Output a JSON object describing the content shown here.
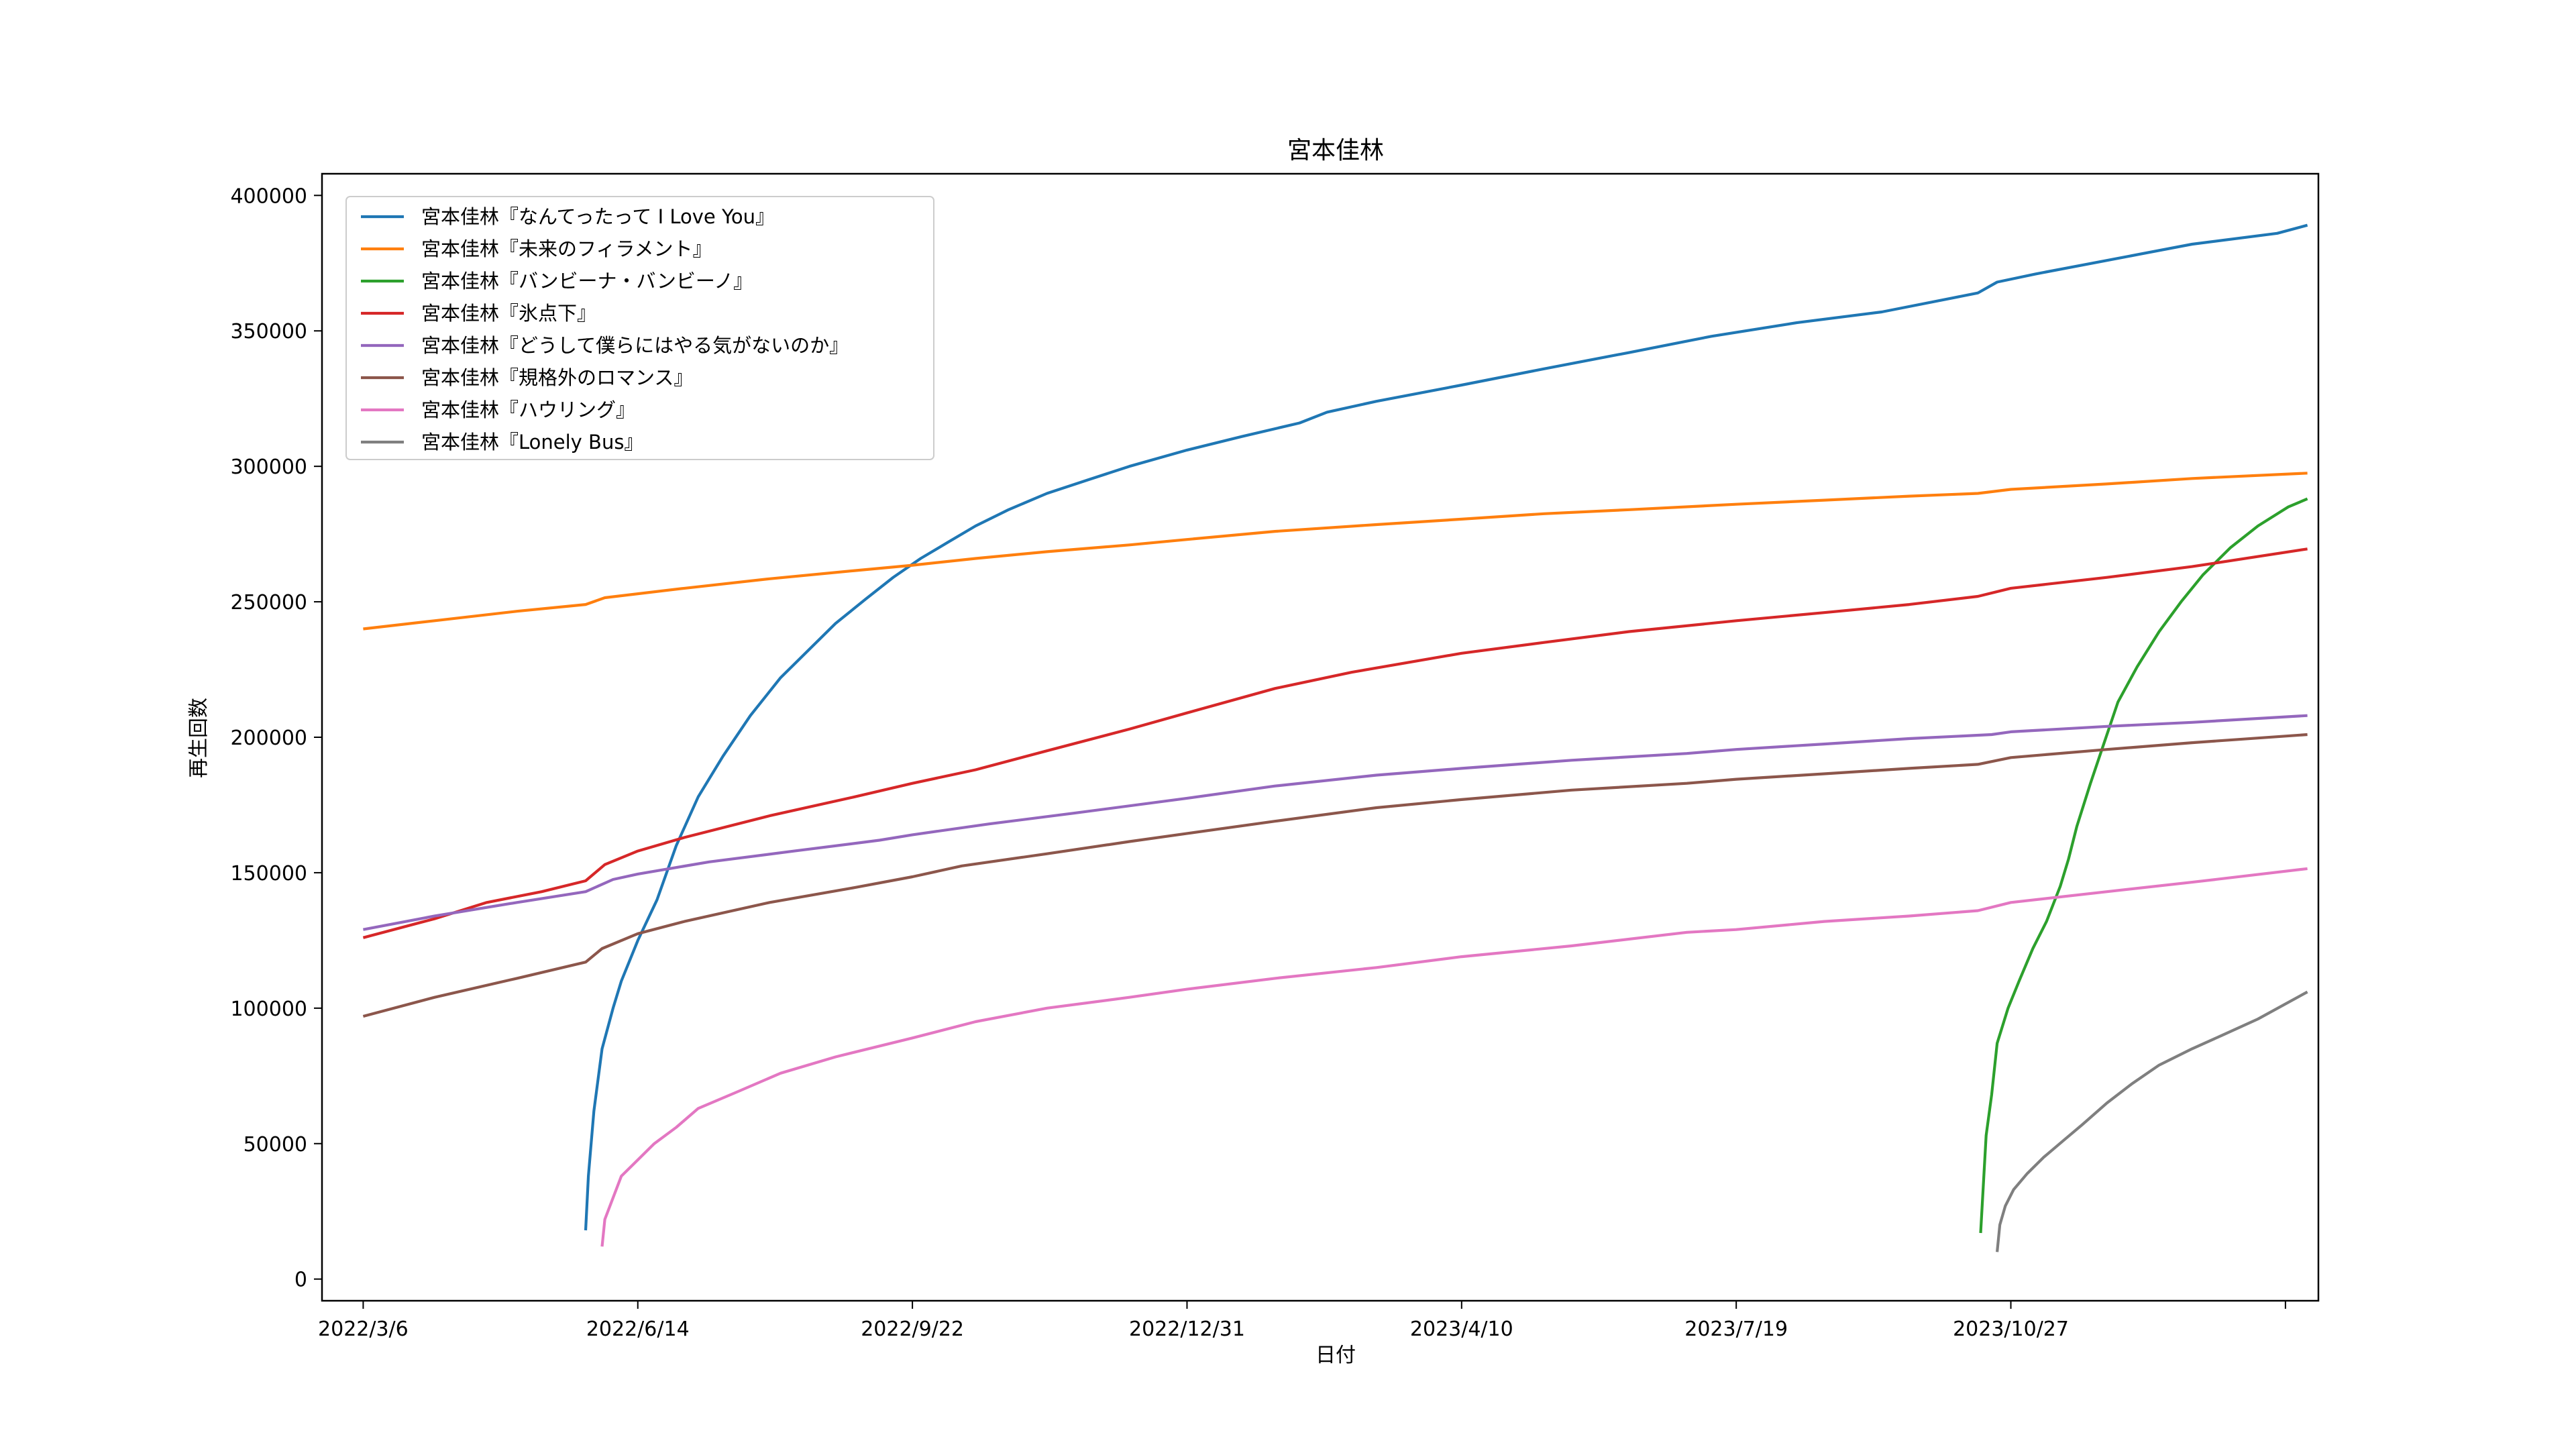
{
  "chart_data": {
    "type": "line",
    "title": "宮本佳林",
    "xlabel": "日付",
    "ylabel": "再生回数",
    "x_ticks": [
      "2022/3/6",
      "2022/6/14",
      "2022/9/22",
      "2022/12/31",
      "2023/4/10",
      "2023/7/19",
      "2023/10/27",
      ""
    ],
    "y_ticks": [
      "0",
      "50000",
      "100000",
      "150000",
      "200000",
      "250000",
      "300000",
      "350000",
      "400000"
    ],
    "xlim": [
      "2022-02-19",
      "2024-02-16"
    ],
    "ylim": [
      -8000,
      408000
    ],
    "grid": false,
    "legend_position": "top-left",
    "series": [
      {
        "name": "宮本佳林『なんてったって I Love You』",
        "color": "#1f77b4",
        "points": [
          [
            "2022-05-26",
            18000
          ],
          [
            "2022-05-27",
            38000
          ],
          [
            "2022-05-29",
            62000
          ],
          [
            "2022-06-01",
            85000
          ],
          [
            "2022-06-05",
            100000
          ],
          [
            "2022-06-08",
            110000
          ],
          [
            "2022-06-14",
            125000
          ],
          [
            "2022-06-21",
            140000
          ],
          [
            "2022-06-28",
            160000
          ],
          [
            "2022-07-06",
            178000
          ],
          [
            "2022-07-15",
            193000
          ],
          [
            "2022-07-25",
            208000
          ],
          [
            "2022-08-05",
            222000
          ],
          [
            "2022-08-15",
            232000
          ],
          [
            "2022-08-25",
            242000
          ],
          [
            "2022-09-05",
            251000
          ],
          [
            "2022-09-15",
            259000
          ],
          [
            "2022-09-25",
            266000
          ],
          [
            "2022-10-05",
            272000
          ],
          [
            "2022-10-15",
            278000
          ],
          [
            "2022-10-27",
            284000
          ],
          [
            "2022-11-10",
            290000
          ],
          [
            "2022-11-25",
            295000
          ],
          [
            "2022-12-10",
            300000
          ],
          [
            "2022-12-31",
            306000
          ],
          [
            "2023-01-20",
            311000
          ],
          [
            "2023-02-10",
            316000
          ],
          [
            "2023-02-20",
            320000
          ],
          [
            "2023-03-10",
            324000
          ],
          [
            "2023-04-10",
            330000
          ],
          [
            "2023-05-10",
            336000
          ],
          [
            "2023-06-10",
            342000
          ],
          [
            "2023-07-10",
            348000
          ],
          [
            "2023-08-10",
            353000
          ],
          [
            "2023-09-10",
            357000
          ],
          [
            "2023-10-05",
            362000
          ],
          [
            "2023-10-15",
            364000
          ],
          [
            "2023-10-22",
            368000
          ],
          [
            "2023-11-05",
            371000
          ],
          [
            "2023-12-01",
            376000
          ],
          [
            "2024-01-01",
            382000
          ],
          [
            "2024-02-01",
            386000
          ],
          [
            "2024-02-12",
            389000
          ]
        ]
      },
      {
        "name": "宮本佳林『未来のフィラメント』",
        "color": "#ff7f0e",
        "points": [
          [
            "2022-03-06",
            240000
          ],
          [
            "2022-04-01",
            243000
          ],
          [
            "2022-05-01",
            246500
          ],
          [
            "2022-05-26",
            249000
          ],
          [
            "2022-06-02",
            251500
          ],
          [
            "2022-07-01",
            255000
          ],
          [
            "2022-08-01",
            258500
          ],
          [
            "2022-09-01",
            261500
          ],
          [
            "2022-09-22",
            263500
          ],
          [
            "2022-10-15",
            266000
          ],
          [
            "2022-11-10",
            268500
          ],
          [
            "2022-12-10",
            271000
          ],
          [
            "2022-12-31",
            273000
          ],
          [
            "2023-02-01",
            276000
          ],
          [
            "2023-03-10",
            278500
          ],
          [
            "2023-04-10",
            280500
          ],
          [
            "2023-05-10",
            282500
          ],
          [
            "2023-06-10",
            284000
          ],
          [
            "2023-07-19",
            286000
          ],
          [
            "2023-08-20",
            287500
          ],
          [
            "2023-09-20",
            289000
          ],
          [
            "2023-10-15",
            290000
          ],
          [
            "2023-10-27",
            291500
          ],
          [
            "2023-12-01",
            293500
          ],
          [
            "2024-01-01",
            295500
          ],
          [
            "2024-02-12",
            297500
          ]
        ]
      },
      {
        "name": "宮本佳林『バンビーナ・バンビーノ』",
        "color": "#2ca02c",
        "points": [
          [
            "2023-10-16",
            17000
          ],
          [
            "2023-10-17",
            35000
          ],
          [
            "2023-10-18",
            53000
          ],
          [
            "2023-10-20",
            68000
          ],
          [
            "2023-10-22",
            87000
          ],
          [
            "2023-10-26",
            100000
          ],
          [
            "2023-10-30",
            110000
          ],
          [
            "2023-11-04",
            122000
          ],
          [
            "2023-11-09",
            132000
          ],
          [
            "2023-11-14",
            145000
          ],
          [
            "2023-11-17",
            155000
          ],
          [
            "2023-11-20",
            167000
          ],
          [
            "2023-11-25",
            183000
          ],
          [
            "2023-11-30",
            198000
          ],
          [
            "2023-12-05",
            213000
          ],
          [
            "2023-12-12",
            226000
          ],
          [
            "2023-12-20",
            239000
          ],
          [
            "2023-12-28",
            250000
          ],
          [
            "2024-01-05",
            260000
          ],
          [
            "2024-01-15",
            270000
          ],
          [
            "2024-01-25",
            278000
          ],
          [
            "2024-02-05",
            285000
          ],
          [
            "2024-02-12",
            288000
          ]
        ]
      },
      {
        "name": "宮本佳林『氷点下』",
        "color": "#d62728",
        "points": [
          [
            "2022-03-06",
            126000
          ],
          [
            "2022-04-01",
            133000
          ],
          [
            "2022-04-20",
            139000
          ],
          [
            "2022-05-10",
            143000
          ],
          [
            "2022-05-26",
            147000
          ],
          [
            "2022-06-02",
            153000
          ],
          [
            "2022-06-14",
            158000
          ],
          [
            "2022-07-01",
            163000
          ],
          [
            "2022-08-01",
            171000
          ],
          [
            "2022-09-01",
            178000
          ],
          [
            "2022-09-22",
            183000
          ],
          [
            "2022-10-15",
            188000
          ],
          [
            "2022-11-10",
            195000
          ],
          [
            "2022-12-10",
            203000
          ],
          [
            "2022-12-31",
            209000
          ],
          [
            "2023-02-01",
            218000
          ],
          [
            "2023-03-01",
            224000
          ],
          [
            "2023-04-10",
            231000
          ],
          [
            "2023-05-10",
            235000
          ],
          [
            "2023-06-10",
            239000
          ],
          [
            "2023-07-19",
            243000
          ],
          [
            "2023-08-20",
            246000
          ],
          [
            "2023-09-20",
            249000
          ],
          [
            "2023-10-15",
            252000
          ],
          [
            "2023-10-27",
            255000
          ],
          [
            "2023-12-01",
            259000
          ],
          [
            "2024-01-01",
            263000
          ],
          [
            "2024-02-12",
            269500
          ]
        ]
      },
      {
        "name": "宮本佳林『どうして僕らにはやる気がないのか』",
        "color": "#9467bd",
        "points": [
          [
            "2022-03-06",
            129000
          ],
          [
            "2022-04-01",
            134000
          ],
          [
            "2022-05-01",
            139000
          ],
          [
            "2022-05-26",
            143000
          ],
          [
            "2022-06-05",
            147500
          ],
          [
            "2022-06-14",
            149500
          ],
          [
            "2022-07-10",
            154000
          ],
          [
            "2022-08-10",
            158000
          ],
          [
            "2022-09-10",
            162000
          ],
          [
            "2022-09-22",
            164000
          ],
          [
            "2022-10-20",
            168000
          ],
          [
            "2022-11-20",
            172000
          ],
          [
            "2022-12-31",
            177500
          ],
          [
            "2023-02-01",
            182000
          ],
          [
            "2023-03-10",
            186000
          ],
          [
            "2023-04-10",
            188500
          ],
          [
            "2023-05-20",
            191500
          ],
          [
            "2023-07-01",
            194000
          ],
          [
            "2023-07-19",
            195500
          ],
          [
            "2023-08-20",
            197500
          ],
          [
            "2023-09-20",
            199500
          ],
          [
            "2023-10-20",
            201000
          ],
          [
            "2023-10-27",
            202000
          ],
          [
            "2023-12-01",
            204000
          ],
          [
            "2024-01-01",
            205500
          ],
          [
            "2024-02-12",
            208000
          ]
        ]
      },
      {
        "name": "宮本佳林『規格外のロマンス』",
        "color": "#8c564b",
        "points": [
          [
            "2022-03-06",
            97000
          ],
          [
            "2022-04-01",
            104000
          ],
          [
            "2022-05-01",
            111000
          ],
          [
            "2022-05-26",
            117000
          ],
          [
            "2022-06-01",
            122000
          ],
          [
            "2022-06-14",
            127500
          ],
          [
            "2022-07-01",
            132000
          ],
          [
            "2022-08-01",
            139000
          ],
          [
            "2022-09-01",
            144500
          ],
          [
            "2022-09-22",
            148500
          ],
          [
            "2022-10-10",
            152500
          ],
          [
            "2022-11-10",
            157000
          ],
          [
            "2022-12-10",
            161500
          ],
          [
            "2022-12-31",
            164500
          ],
          [
            "2023-02-01",
            169000
          ],
          [
            "2023-03-10",
            174000
          ],
          [
            "2023-04-10",
            177000
          ],
          [
            "2023-05-20",
            180500
          ],
          [
            "2023-07-01",
            183000
          ],
          [
            "2023-07-19",
            184500
          ],
          [
            "2023-08-20",
            186500
          ],
          [
            "2023-09-20",
            188500
          ],
          [
            "2023-10-15",
            190000
          ],
          [
            "2023-10-27",
            192500
          ],
          [
            "2023-12-01",
            195500
          ],
          [
            "2024-01-01",
            198000
          ],
          [
            "2024-02-12",
            201000
          ]
        ]
      },
      {
        "name": "宮本佳林『ハウリング』",
        "color": "#e377c2",
        "points": [
          [
            "2022-06-01",
            12000
          ],
          [
            "2022-06-02",
            22000
          ],
          [
            "2022-06-05",
            30000
          ],
          [
            "2022-06-08",
            38000
          ],
          [
            "2022-06-14",
            44000
          ],
          [
            "2022-06-20",
            50000
          ],
          [
            "2022-06-28",
            56000
          ],
          [
            "2022-07-06",
            63000
          ],
          [
            "2022-07-20",
            69000
          ],
          [
            "2022-08-05",
            76000
          ],
          [
            "2022-08-25",
            82000
          ],
          [
            "2022-09-22",
            89000
          ],
          [
            "2022-10-15",
            95000
          ],
          [
            "2022-11-10",
            100000
          ],
          [
            "2022-12-10",
            104000
          ],
          [
            "2022-12-31",
            107000
          ],
          [
            "2023-02-01",
            111000
          ],
          [
            "2023-03-10",
            115000
          ],
          [
            "2023-04-10",
            119000
          ],
          [
            "2023-05-20",
            123000
          ],
          [
            "2023-07-01",
            128000
          ],
          [
            "2023-07-19",
            129000
          ],
          [
            "2023-08-20",
            132000
          ],
          [
            "2023-09-20",
            134000
          ],
          [
            "2023-10-15",
            136000
          ],
          [
            "2023-10-27",
            139000
          ],
          [
            "2023-12-01",
            143000
          ],
          [
            "2024-01-01",
            146500
          ],
          [
            "2024-02-12",
            151500
          ]
        ]
      },
      {
        "name": "宮本佳林『Lonely Bus』",
        "color": "#7f7f7f",
        "points": [
          [
            "2023-10-22",
            10000
          ],
          [
            "2023-10-23",
            20000
          ],
          [
            "2023-10-25",
            27000
          ],
          [
            "2023-10-28",
            33000
          ],
          [
            "2023-11-02",
            39000
          ],
          [
            "2023-11-08",
            45000
          ],
          [
            "2023-11-15",
            51000
          ],
          [
            "2023-11-22",
            57000
          ],
          [
            "2023-12-01",
            65000
          ],
          [
            "2023-12-10",
            72000
          ],
          [
            "2023-12-20",
            79000
          ],
          [
            "2024-01-01",
            85000
          ],
          [
            "2024-01-12",
            90000
          ],
          [
            "2024-01-25",
            96000
          ],
          [
            "2024-02-12",
            106000
          ]
        ]
      }
    ]
  }
}
